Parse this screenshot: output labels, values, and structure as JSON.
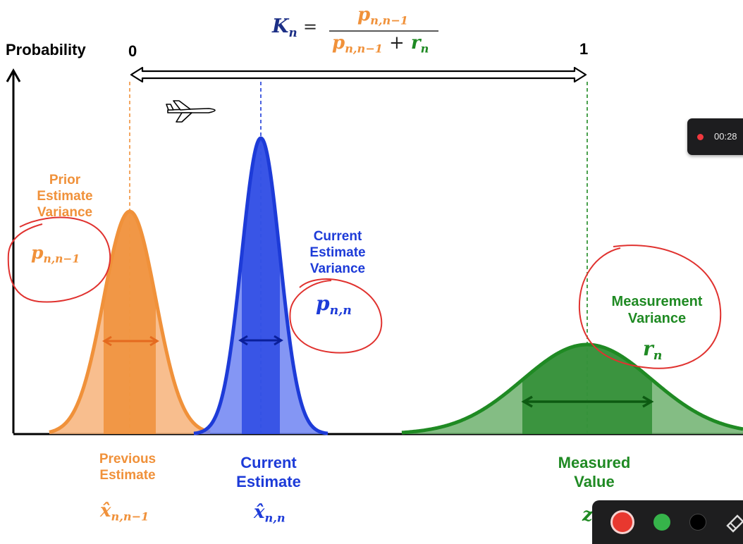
{
  "formula": {
    "lhs": "K",
    "lhs_sub": "n",
    "equals": "=",
    "num_p": "p",
    "num_sub": "n,n−1",
    "den_p": "p",
    "den_sub": "n,n−1",
    "den_plus": "+",
    "den_r": "r",
    "den_r_sub": "n"
  },
  "axis": {
    "y_label": "Probability",
    "gain_min": "0",
    "gain_max": "1"
  },
  "prior": {
    "title": "Prior\nEstimate\nVariance",
    "sym": "p",
    "sym_sub": "n,n−1",
    "x_label": "Previous\nEstimate",
    "x_sym": "x̂",
    "x_sub": "n,n−1"
  },
  "current": {
    "title": "Current\nEstimate\nVariance",
    "sym": "p",
    "sym_sub": "n,n",
    "x_label": "Current\nEstimate",
    "x_sym": "x̂",
    "x_sub": "n,n"
  },
  "measurement": {
    "title": "Measurement\nVariance",
    "sym": "r",
    "sym_sub": "n",
    "x_label": "Measured\nValue",
    "x_sym": "z"
  },
  "recorder": {
    "time": "00:28"
  },
  "icons": [
    "airplane-icon",
    "record-button",
    "green-color-button",
    "black-color-button",
    "eraser-icon"
  ],
  "colors": {
    "prior": "#f0913a",
    "current": "#1d3bd8",
    "measurement": "#1f8a23",
    "annotation": "#e0322f"
  }
}
